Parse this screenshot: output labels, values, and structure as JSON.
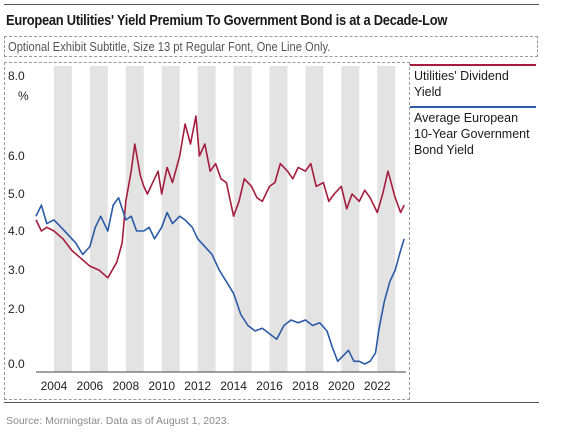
{
  "header": {
    "title": "European Utilities' Yield Premium To Government Bond is at a Decade-Low",
    "subtitle": "Optional Exhibit Subtitle, Size 13 pt Regular Font, One Line Only."
  },
  "footer": {
    "source": "Source: Morningstar. Data as of August 1, 2023."
  },
  "colors": {
    "dividend": "#a51d3d",
    "bond": "#2b5aa6",
    "band": "#e3e3e3"
  },
  "chart_data": {
    "type": "line",
    "title": "European Utilities' Yield Premium To Government Bond is at a Decade-Low",
    "subtitle": "Optional Exhibit Subtitle, Size 13 pt Regular Font, One Line Only.",
    "ylabel": "%",
    "ylim": [
      0,
      8.0
    ],
    "xlim": [
      2002.9,
      2023.6
    ],
    "y_ticks": [
      {
        "value": 0,
        "label": "0.0"
      },
      {
        "value": 2,
        "label": "2.0"
      },
      {
        "value": 3,
        "label": "3.0"
      },
      {
        "value": 4,
        "label": "4.0"
      },
      {
        "value": 5,
        "label": "5.0"
      },
      {
        "value": 6,
        "label": "6.0"
      },
      {
        "value": 8,
        "label": "8.0"
      }
    ],
    "x_ticks": [
      "2004",
      "2006",
      "2008",
      "2010",
      "2012",
      "2014",
      "2016",
      "2018",
      "2020",
      "2022"
    ],
    "shaded_bands": [
      [
        2004,
        2005
      ],
      [
        2006,
        2007
      ],
      [
        2008,
        2009
      ],
      [
        2010,
        2011
      ],
      [
        2012,
        2013
      ],
      [
        2014,
        2015
      ],
      [
        2016,
        2017
      ],
      [
        2018,
        2019
      ],
      [
        2020,
        2021
      ],
      [
        2022,
        2023
      ]
    ],
    "legend_position": "right",
    "grid": false,
    "series": [
      {
        "name": "Utilities' Dividend Yield",
        "x": [
          2003.0,
          2003.3,
          2003.6,
          2004.0,
          2004.5,
          2005.0,
          2005.5,
          2006.0,
          2006.5,
          2007.0,
          2007.5,
          2007.8,
          2008.0,
          2008.3,
          2008.5,
          2008.8,
          2009.0,
          2009.2,
          2009.5,
          2009.8,
          2010.0,
          2010.3,
          2010.6,
          2011.0,
          2011.3,
          2011.6,
          2011.9,
          2012.1,
          2012.4,
          2012.7,
          2013.0,
          2013.3,
          2013.6,
          2014.0,
          2014.3,
          2014.6,
          2015.0,
          2015.3,
          2015.6,
          2016.0,
          2016.3,
          2016.6,
          2017.0,
          2017.3,
          2017.6,
          2018.0,
          2018.3,
          2018.6,
          2019.0,
          2019.3,
          2019.6,
          2020.0,
          2020.3,
          2020.6,
          2021.0,
          2021.3,
          2021.6,
          2022.0,
          2022.3,
          2022.6,
          2023.0,
          2023.3,
          2023.5
        ],
        "values": [
          4.3,
          4.0,
          4.1,
          4.0,
          3.8,
          3.5,
          3.3,
          3.1,
          3.0,
          2.8,
          3.2,
          3.7,
          4.8,
          5.6,
          6.3,
          5.5,
          5.2,
          5.0,
          5.3,
          5.6,
          5.0,
          5.7,
          5.3,
          6.0,
          6.8,
          6.3,
          7.0,
          6.0,
          6.3,
          5.6,
          5.8,
          5.4,
          5.3,
          4.4,
          4.8,
          5.4,
          5.2,
          4.9,
          4.8,
          5.2,
          5.3,
          5.8,
          5.6,
          5.4,
          5.7,
          5.6,
          5.8,
          5.2,
          5.3,
          4.8,
          5.0,
          5.2,
          4.6,
          5.0,
          4.8,
          5.1,
          4.9,
          4.5,
          5.0,
          5.6,
          4.9,
          4.5,
          4.7
        ]
      },
      {
        "name": "Average European 10-Year Government Bond Yield",
        "x": [
          2003.0,
          2003.3,
          2003.6,
          2004.0,
          2004.4,
          2004.8,
          2005.2,
          2005.6,
          2006.0,
          2006.3,
          2006.6,
          2007.0,
          2007.3,
          2007.6,
          2008.0,
          2008.3,
          2008.6,
          2009.0,
          2009.3,
          2009.6,
          2010.0,
          2010.3,
          2010.6,
          2011.0,
          2011.3,
          2011.7,
          2012.0,
          2012.4,
          2012.8,
          2013.2,
          2013.6,
          2014.0,
          2014.4,
          2014.8,
          2015.2,
          2015.6,
          2016.0,
          2016.4,
          2016.8,
          2017.2,
          2017.6,
          2018.0,
          2018.4,
          2018.8,
          2019.2,
          2019.5,
          2019.8,
          2020.1,
          2020.4,
          2020.7,
          2021.0,
          2021.3,
          2021.6,
          2021.9,
          2022.1,
          2022.4,
          2022.7,
          2023.0,
          2023.3,
          2023.5
        ],
        "values": [
          4.4,
          4.7,
          4.2,
          4.3,
          4.1,
          3.9,
          3.7,
          3.4,
          3.6,
          4.1,
          4.4,
          4.0,
          4.7,
          4.9,
          4.3,
          4.4,
          4.0,
          4.0,
          4.1,
          3.8,
          4.1,
          4.5,
          4.2,
          4.4,
          4.3,
          4.1,
          3.8,
          3.6,
          3.4,
          3.0,
          2.7,
          2.4,
          1.8,
          1.4,
          1.2,
          1.3,
          1.1,
          0.9,
          1.4,
          1.6,
          1.5,
          1.6,
          1.4,
          1.5,
          1.2,
          0.6,
          0.1,
          0.3,
          0.5,
          0.1,
          0.1,
          0.0,
          0.1,
          0.4,
          1.3,
          2.2,
          2.7,
          3.0,
          3.5,
          3.8
        ]
      }
    ]
  }
}
